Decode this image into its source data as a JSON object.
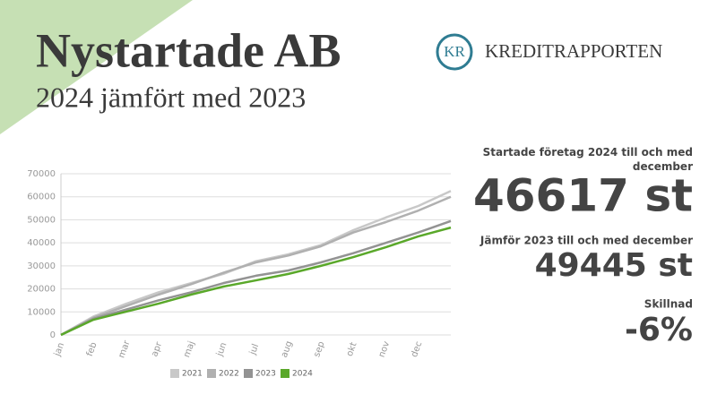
{
  "logo": {
    "mark": "KR",
    "name": "KREDITRAPPORTEN"
  },
  "stats": [
    {
      "label": "Startade företag 2024 till och med december",
      "value": "46617 st"
    },
    {
      "label": "Jämför 2023 till och med december",
      "value": "49445 st"
    },
    {
      "label": "Skillnad",
      "value": "-6%"
    }
  ],
  "chart_data": {
    "type": "line",
    "title": "Nystartade AB",
    "subtitle": "2024 jämfört med 2023",
    "categories": [
      "jan",
      "feb",
      "mar",
      "apr",
      "maj",
      "jun",
      "jul",
      "aug",
      "sep",
      "okt",
      "nov",
      "dec",
      null
    ],
    "series": [
      {
        "name": "2021",
        "color": "#c8c8c8",
        "values": [
          0,
          8000,
          13500,
          18500,
          22500,
          26500,
          32000,
          35000,
          39000,
          45500,
          51000,
          56000,
          62500
        ]
      },
      {
        "name": "2022",
        "color": "#b0b0b0",
        "values": [
          0,
          7500,
          12500,
          17500,
          22000,
          27000,
          31500,
          34500,
          38500,
          44500,
          49000,
          54000,
          60000
        ]
      },
      {
        "name": "2023",
        "color": "#939393",
        "values": [
          0,
          7000,
          11000,
          15000,
          18500,
          22500,
          25700,
          28000,
          31500,
          35500,
          40000,
          44500,
          49445
        ]
      },
      {
        "name": "2024",
        "color": "#5aa82a",
        "values": [
          0,
          6600,
          10100,
          13600,
          17500,
          21000,
          23700,
          26500,
          30000,
          33800,
          38100,
          42800,
          46617
        ]
      }
    ],
    "ylim": [
      0,
      70000
    ],
    "yticks": [
      0,
      10000,
      20000,
      30000,
      40000,
      50000,
      60000,
      70000
    ],
    "grid": true
  }
}
